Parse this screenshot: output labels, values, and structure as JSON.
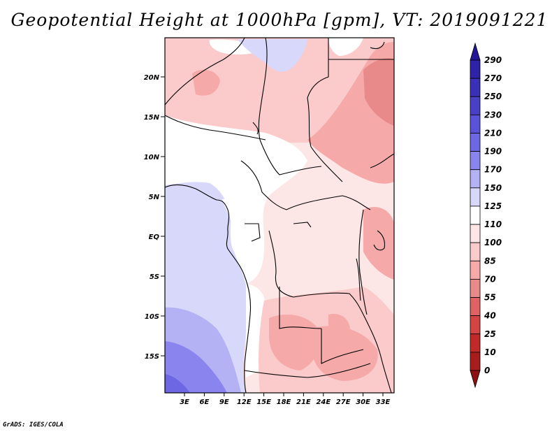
{
  "title": "Geopotential Height at 1000hPa [gpm], VT: 2019091221",
  "credit": "GrADS: IGES/COLA",
  "map": {
    "variable": "Geopotential Height at 1000hPa",
    "units": "gpm",
    "valid_time": "2019091221",
    "lat_labels": [
      "20N",
      "15N",
      "10N",
      "5N",
      "EQ",
      "5S",
      "10S",
      "15S"
    ],
    "lon_labels": [
      "3E",
      "6E",
      "9E",
      "12E",
      "15E",
      "18E",
      "21E",
      "24E",
      "27E",
      "30E",
      "33E"
    ]
  },
  "colorbar": {
    "levels": [
      "290",
      "270",
      "250",
      "230",
      "210",
      "190",
      "170",
      "150",
      "125",
      "110",
      "100",
      "85",
      "70",
      "55",
      "40",
      "25",
      "10",
      "0"
    ],
    "colors": [
      "#241596",
      "#2d22a8",
      "#3b31b8",
      "#4a40c8",
      "#5a52d8",
      "#6e67e4",
      "#8a84ee",
      "#b4b2f4",
      "#d8d8fa",
      "#ffffff",
      "#fde6e6",
      "#fbcaca",
      "#f5a9a9",
      "#e98a8a",
      "#e06262",
      "#d44444",
      "#c22a2a",
      "#a81c1c",
      "#8e1010"
    ]
  }
}
